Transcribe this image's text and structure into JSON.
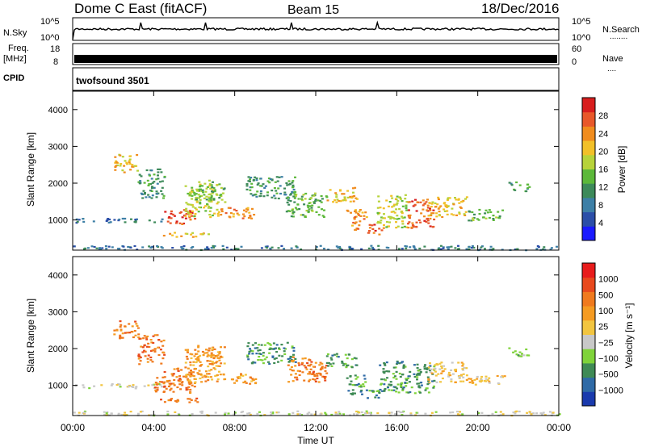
{
  "header": {
    "station": "Dome C East (fitACF)",
    "beam": "Beam 15",
    "date": "18/Dec/2016"
  },
  "nsky_panel": {
    "left_label": "N.Sky",
    "left_ticks": [
      "10^5",
      "10^0"
    ],
    "right_ticks": [
      "10^5",
      "10^0"
    ],
    "right_label": "N.Search",
    "right_legend": "........"
  },
  "freq_panel": {
    "left_label_1": "Freq.",
    "left_label_2": "[MHz]",
    "left_ticks": [
      "18",
      "8"
    ],
    "right_ticks": [
      "60",
      "0"
    ],
    "right_label": "Nave",
    "right_legend": "...."
  },
  "cpid_panel": {
    "left_label": "CPID",
    "text": "twofsound 3501"
  },
  "x_axis": {
    "label": "Time UT",
    "ticks": [
      "00:00",
      "04:00",
      "08:00",
      "12:00",
      "16:00",
      "20:00",
      "00:00"
    ]
  },
  "colors": {
    "power": [
      "#1a1aff",
      "#2b4ea8",
      "#3d7fa6",
      "#3d8a5a",
      "#5cb83a",
      "#b7d33a",
      "#f2c028",
      "#f08c1e",
      "#e8582a",
      "#d81e1e"
    ],
    "velocity": [
      "#e81c1c",
      "#e8491d",
      "#f07a1e",
      "#f59b22",
      "#f2c540",
      "#c8c8c8",
      "#7fd33a",
      "#3f8a55",
      "#2f6aa6",
      "#1a3aad"
    ]
  },
  "chart_data": [
    {
      "type": "heatmap",
      "name": "power",
      "ylabel": "Slant Range [km]",
      "xlabel": "",
      "xlim": [
        0,
        24
      ],
      "ylim": [
        180,
        4500
      ],
      "yticks": [
        1000,
        2000,
        3000,
        4000
      ],
      "colorbar": {
        "label": "Power [dB]",
        "range": [
          0,
          32
        ],
        "ticks": [
          "4",
          "8",
          "12",
          "16",
          "20",
          "24",
          "28"
        ]
      },
      "blobs": [
        {
          "t0": 0.0,
          "t1": 24.0,
          "r0": 200,
          "r1": 320,
          "level": 2
        },
        {
          "t0": 0.0,
          "t1": 4.5,
          "r0": 940,
          "r1": 1060,
          "level": 2
        },
        {
          "t0": 2.0,
          "t1": 3.2,
          "r0": 2300,
          "r1": 2800,
          "level": 6
        },
        {
          "t0": 3.2,
          "t1": 4.5,
          "r0": 1600,
          "r1": 2400,
          "level": 3
        },
        {
          "t0": 4.5,
          "t1": 6.0,
          "r0": 900,
          "r1": 1300,
          "level": 8
        },
        {
          "t0": 5.5,
          "t1": 7.2,
          "r0": 1100,
          "r1": 2000,
          "level": 5
        },
        {
          "t0": 4.3,
          "t1": 6.8,
          "r0": 560,
          "r1": 680,
          "level": 6
        },
        {
          "t0": 6.0,
          "t1": 7.5,
          "r0": 1500,
          "r1": 2100,
          "level": 4
        },
        {
          "t0": 7.2,
          "t1": 9.0,
          "r0": 1050,
          "r1": 1350,
          "level": 7
        },
        {
          "t0": 8.5,
          "t1": 11.0,
          "r0": 1600,
          "r1": 2200,
          "level": 3
        },
        {
          "t0": 10.5,
          "t1": 12.5,
          "r0": 1100,
          "r1": 1800,
          "level": 4
        },
        {
          "t0": 12.5,
          "t1": 14.0,
          "r0": 1500,
          "r1": 1900,
          "level": 6
        },
        {
          "t0": 13.5,
          "t1": 14.5,
          "r0": 750,
          "r1": 1300,
          "level": 7
        },
        {
          "t0": 14.5,
          "t1": 15.3,
          "r0": 600,
          "r1": 900,
          "level": 8
        },
        {
          "t0": 15.0,
          "t1": 16.5,
          "r0": 800,
          "r1": 1700,
          "level": 5
        },
        {
          "t0": 16.5,
          "t1": 17.8,
          "r0": 800,
          "r1": 1600,
          "level": 8
        },
        {
          "t0": 17.5,
          "t1": 19.5,
          "r0": 1100,
          "r1": 1650,
          "level": 6
        },
        {
          "t0": 19.5,
          "t1": 21.3,
          "r0": 1000,
          "r1": 1300,
          "level": 4
        },
        {
          "t0": 21.5,
          "t1": 22.5,
          "r0": 1800,
          "r1": 2050,
          "level": 3
        }
      ]
    },
    {
      "type": "heatmap",
      "name": "velocity",
      "ylabel": "Slant Range [km]",
      "xlabel": "Time UT",
      "xlim": [
        0,
        24
      ],
      "ylim": [
        180,
        4500
      ],
      "yticks": [
        1000,
        2000,
        3000,
        4000
      ],
      "colorbar": {
        "label": "Velocity [m s⁻¹]",
        "ticks": [
          "1000",
          "500",
          "100",
          "25",
          "−25",
          "−100",
          "−500",
          "−1000"
        ]
      },
      "blobs": [
        {
          "t0": 0.0,
          "t1": 24.0,
          "r0": 200,
          "r1": 320,
          "level": 5
        },
        {
          "t0": 0.0,
          "t1": 4.5,
          "r0": 940,
          "r1": 1060,
          "level": 5
        },
        {
          "t0": 2.0,
          "t1": 3.2,
          "r0": 2300,
          "r1": 2800,
          "level": 2
        },
        {
          "t0": 3.2,
          "t1": 4.5,
          "r0": 1600,
          "r1": 2400,
          "level": 2
        },
        {
          "t0": 4.0,
          "t1": 6.0,
          "r0": 800,
          "r1": 1500,
          "level": 2
        },
        {
          "t0": 5.5,
          "t1": 7.2,
          "r0": 1100,
          "r1": 2000,
          "level": 3
        },
        {
          "t0": 4.3,
          "t1": 6.8,
          "r0": 560,
          "r1": 680,
          "level": 2
        },
        {
          "t0": 6.0,
          "t1": 7.5,
          "r0": 1500,
          "r1": 2100,
          "level": 3
        },
        {
          "t0": 7.2,
          "t1": 9.0,
          "r0": 1050,
          "r1": 1350,
          "level": 3
        },
        {
          "t0": 8.5,
          "t1": 11.0,
          "r0": 1600,
          "r1": 2200,
          "level": 7
        },
        {
          "t0": 10.5,
          "t1": 12.5,
          "r0": 1100,
          "r1": 1800,
          "level": 2
        },
        {
          "t0": 12.5,
          "t1": 14.0,
          "r0": 1500,
          "r1": 1900,
          "level": 7
        },
        {
          "t0": 13.5,
          "t1": 14.5,
          "r0": 750,
          "r1": 1300,
          "level": 7
        },
        {
          "t0": 14.5,
          "t1": 15.3,
          "r0": 600,
          "r1": 900,
          "level": 7
        },
        {
          "t0": 15.0,
          "t1": 16.5,
          "r0": 800,
          "r1": 1700,
          "level": 7
        },
        {
          "t0": 16.5,
          "t1": 17.8,
          "r0": 800,
          "r1": 1600,
          "level": 7
        },
        {
          "t0": 17.5,
          "t1": 19.5,
          "r0": 1100,
          "r1": 1650,
          "level": 4
        },
        {
          "t0": 19.5,
          "t1": 21.3,
          "r0": 1000,
          "r1": 1300,
          "level": 4
        },
        {
          "t0": 21.5,
          "t1": 22.5,
          "r0": 1800,
          "r1": 2050,
          "level": 6
        }
      ]
    }
  ]
}
